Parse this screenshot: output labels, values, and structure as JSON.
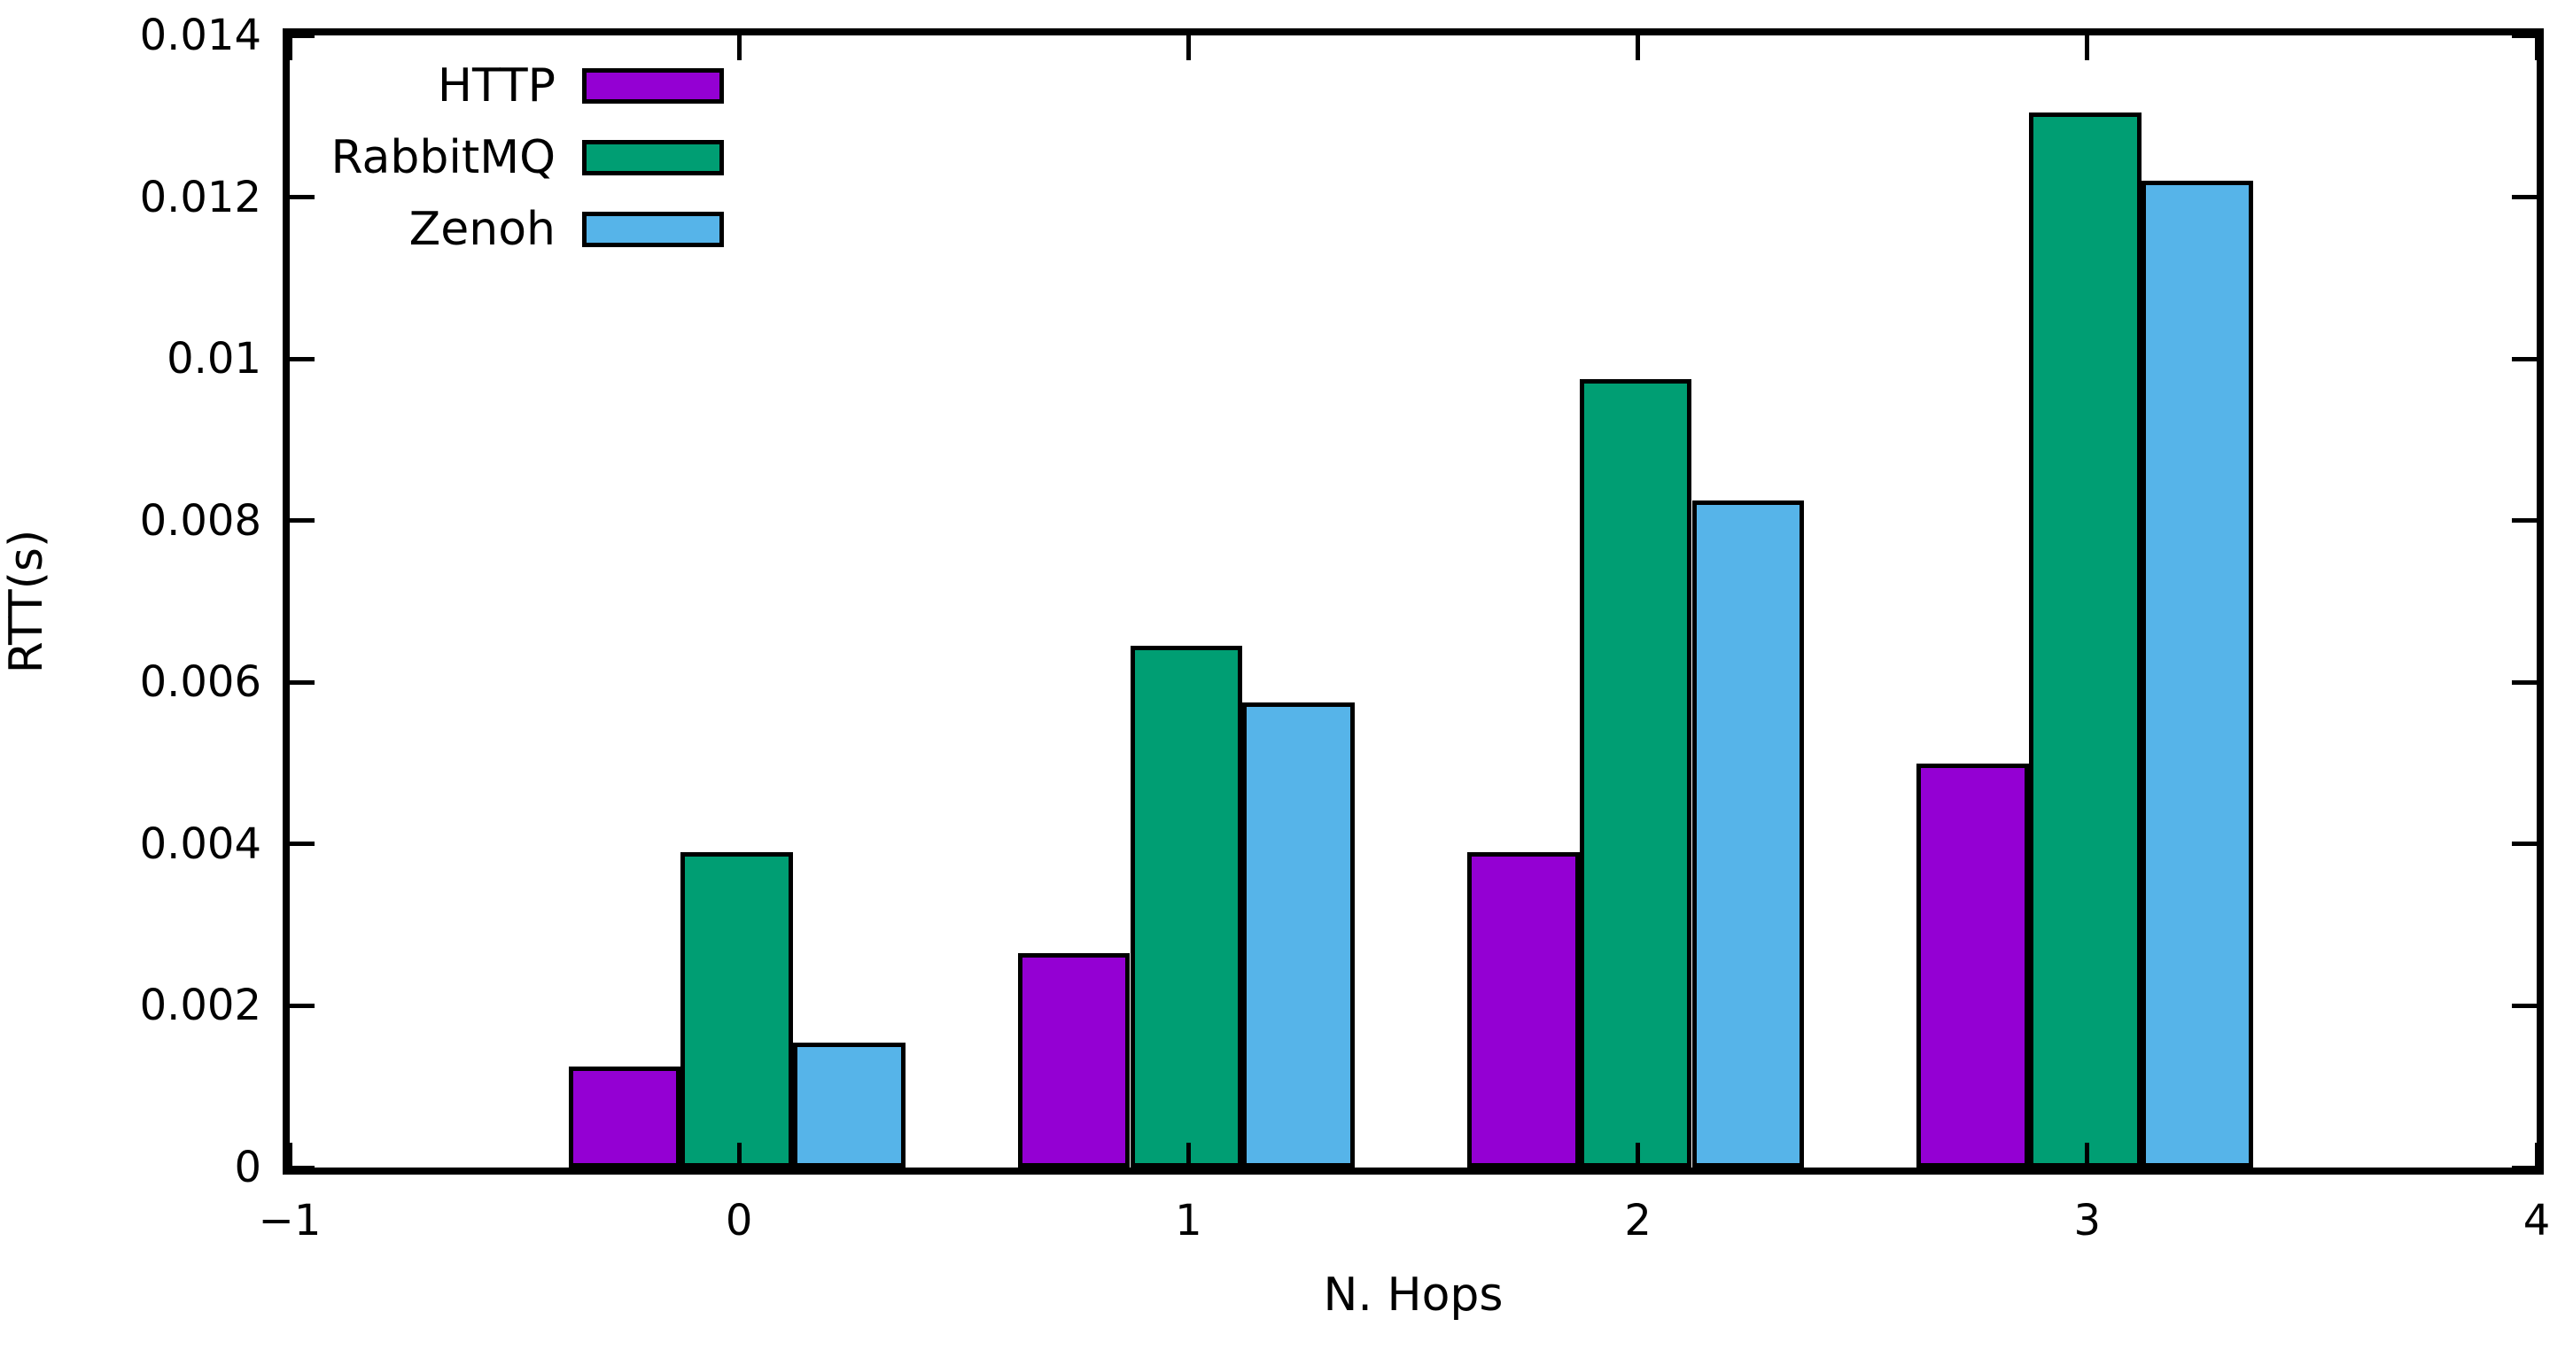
{
  "chart_data": {
    "type": "bar",
    "title": "",
    "xlabel": "N. Hops",
    "ylabel": "RTT(s)",
    "xlim": [
      -1,
      4
    ],
    "ylim": [
      0,
      0.014
    ],
    "x_tick_values": [
      -1,
      0,
      1,
      2,
      3,
      4
    ],
    "x_tick_labels": [
      "−1",
      "0",
      "1",
      "2",
      "3",
      "4"
    ],
    "y_tick_values": [
      0,
      0.002,
      0.004,
      0.006,
      0.008,
      0.01,
      0.012,
      0.014
    ],
    "y_tick_labels": [
      "0",
      "0.002",
      "0.004",
      "0.006",
      "0.008",
      "0.01",
      "0.012",
      "0.014"
    ],
    "categories": [
      0,
      1,
      2,
      3
    ],
    "series": [
      {
        "name": "HTTP",
        "color": "#9400D3",
        "values": [
          0.00125,
          0.00265,
          0.0039,
          0.005
        ]
      },
      {
        "name": "RabbitMQ",
        "color": "#009E73",
        "values": [
          0.0039,
          0.00645,
          0.00975,
          0.01305
        ]
      },
      {
        "name": "Zenoh",
        "color": "#56B4E9",
        "values": [
          0.00155,
          0.00575,
          0.00825,
          0.0122
        ]
      }
    ],
    "bar_width_units": 0.25,
    "group_left_offset_units": -0.38,
    "bar_border_color": "#000000",
    "axis_color": "#000000",
    "legend_position": "top-left",
    "grid": false
  }
}
